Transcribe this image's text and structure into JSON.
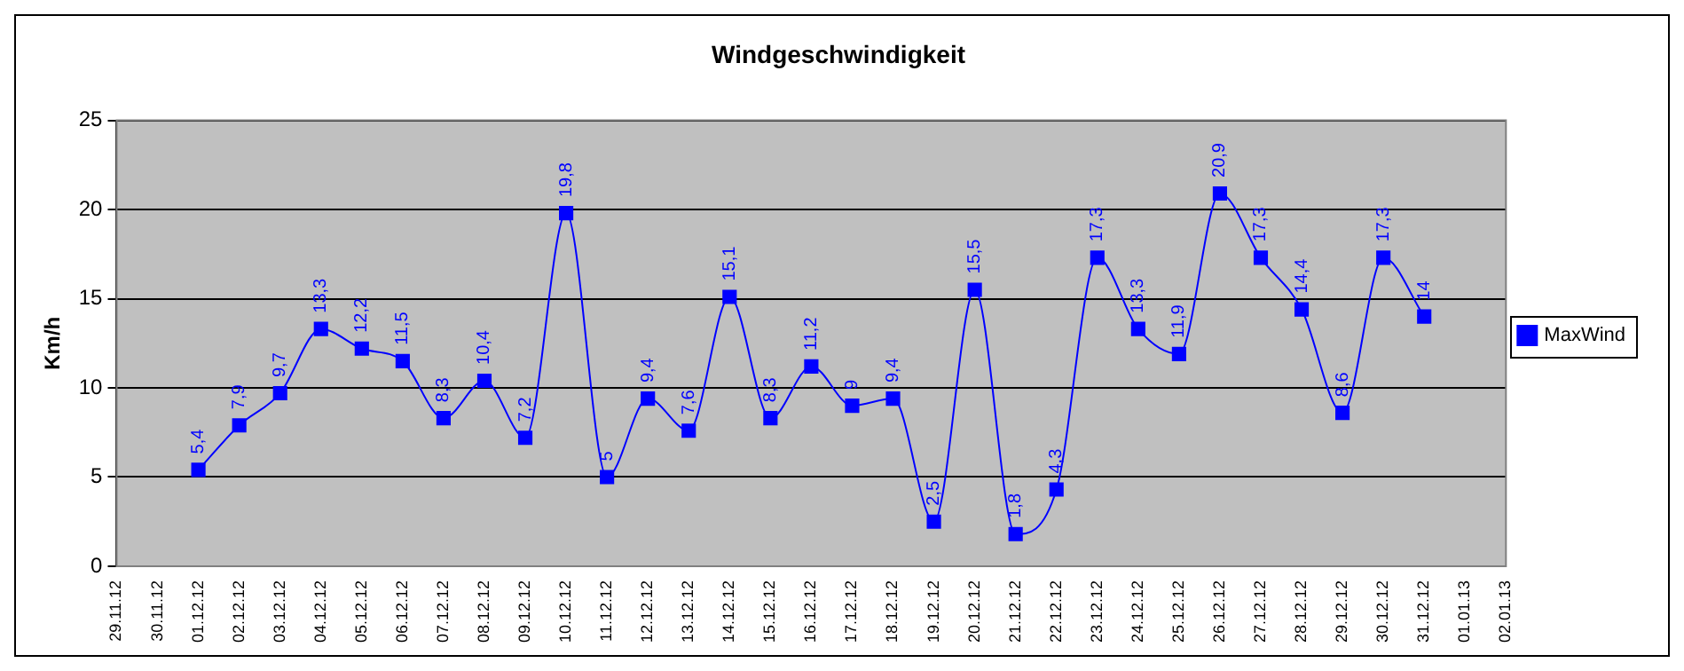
{
  "chart_data": {
    "type": "line",
    "title": "Windgeschwindigkeit",
    "ylabel": "Km/h",
    "categories": [
      "29.11.12",
      "30.11.12",
      "01.12.12",
      "02.12.12",
      "03.12.12",
      "04.12.12",
      "05.12.12",
      "06.12.12",
      "07.12.12",
      "08.12.12",
      "09.12.12",
      "10.12.12",
      "11.12.12",
      "12.12.12",
      "13.12.12",
      "14.12.12",
      "15.12.12",
      "16.12.12",
      "17.12.12",
      "18.12.12",
      "19.12.12",
      "20.12.12",
      "21.12.12",
      "22.12.12",
      "23.12.12",
      "24.12.12",
      "25.12.12",
      "26.12.12",
      "27.12.12",
      "28.12.12",
      "29.12.12",
      "30.12.12",
      "31.12.12",
      "01.01.13",
      "02.01.13"
    ],
    "series": [
      {
        "name": "MaxWind",
        "color": "#0000ff",
        "values": [
          null,
          null,
          5.4,
          7.9,
          9.7,
          13.3,
          12.2,
          11.5,
          8.3,
          10.4,
          7.2,
          19.8,
          5,
          9.4,
          7.6,
          15.1,
          8.3,
          11.2,
          9,
          9.4,
          2.5,
          15.5,
          1.8,
          4.3,
          17.3,
          13.3,
          11.9,
          20.9,
          17.3,
          14.4,
          8.6,
          17.3,
          14,
          null,
          null
        ],
        "value_labels": [
          null,
          null,
          "5,4",
          "7,9",
          "9,7",
          "13,3",
          "12,2",
          "11,5",
          "8,3",
          "10,4",
          "7,2",
          "19,8",
          "5",
          "9,4",
          "7,6",
          "15,1",
          "8,3",
          "11,2",
          "9",
          "9,4",
          "2,5",
          "15,5",
          "1,8",
          "4,3",
          "17,3",
          "13,3",
          "11,9",
          "20,9",
          "17,3",
          "14,4",
          "8,6",
          "17,3",
          "14",
          null,
          null
        ]
      }
    ],
    "ylim": [
      0,
      25
    ],
    "yticks": [
      0,
      5,
      10,
      15,
      20,
      25
    ],
    "grid": "y",
    "legend": "right",
    "marker": "square",
    "line_style": "solid"
  }
}
